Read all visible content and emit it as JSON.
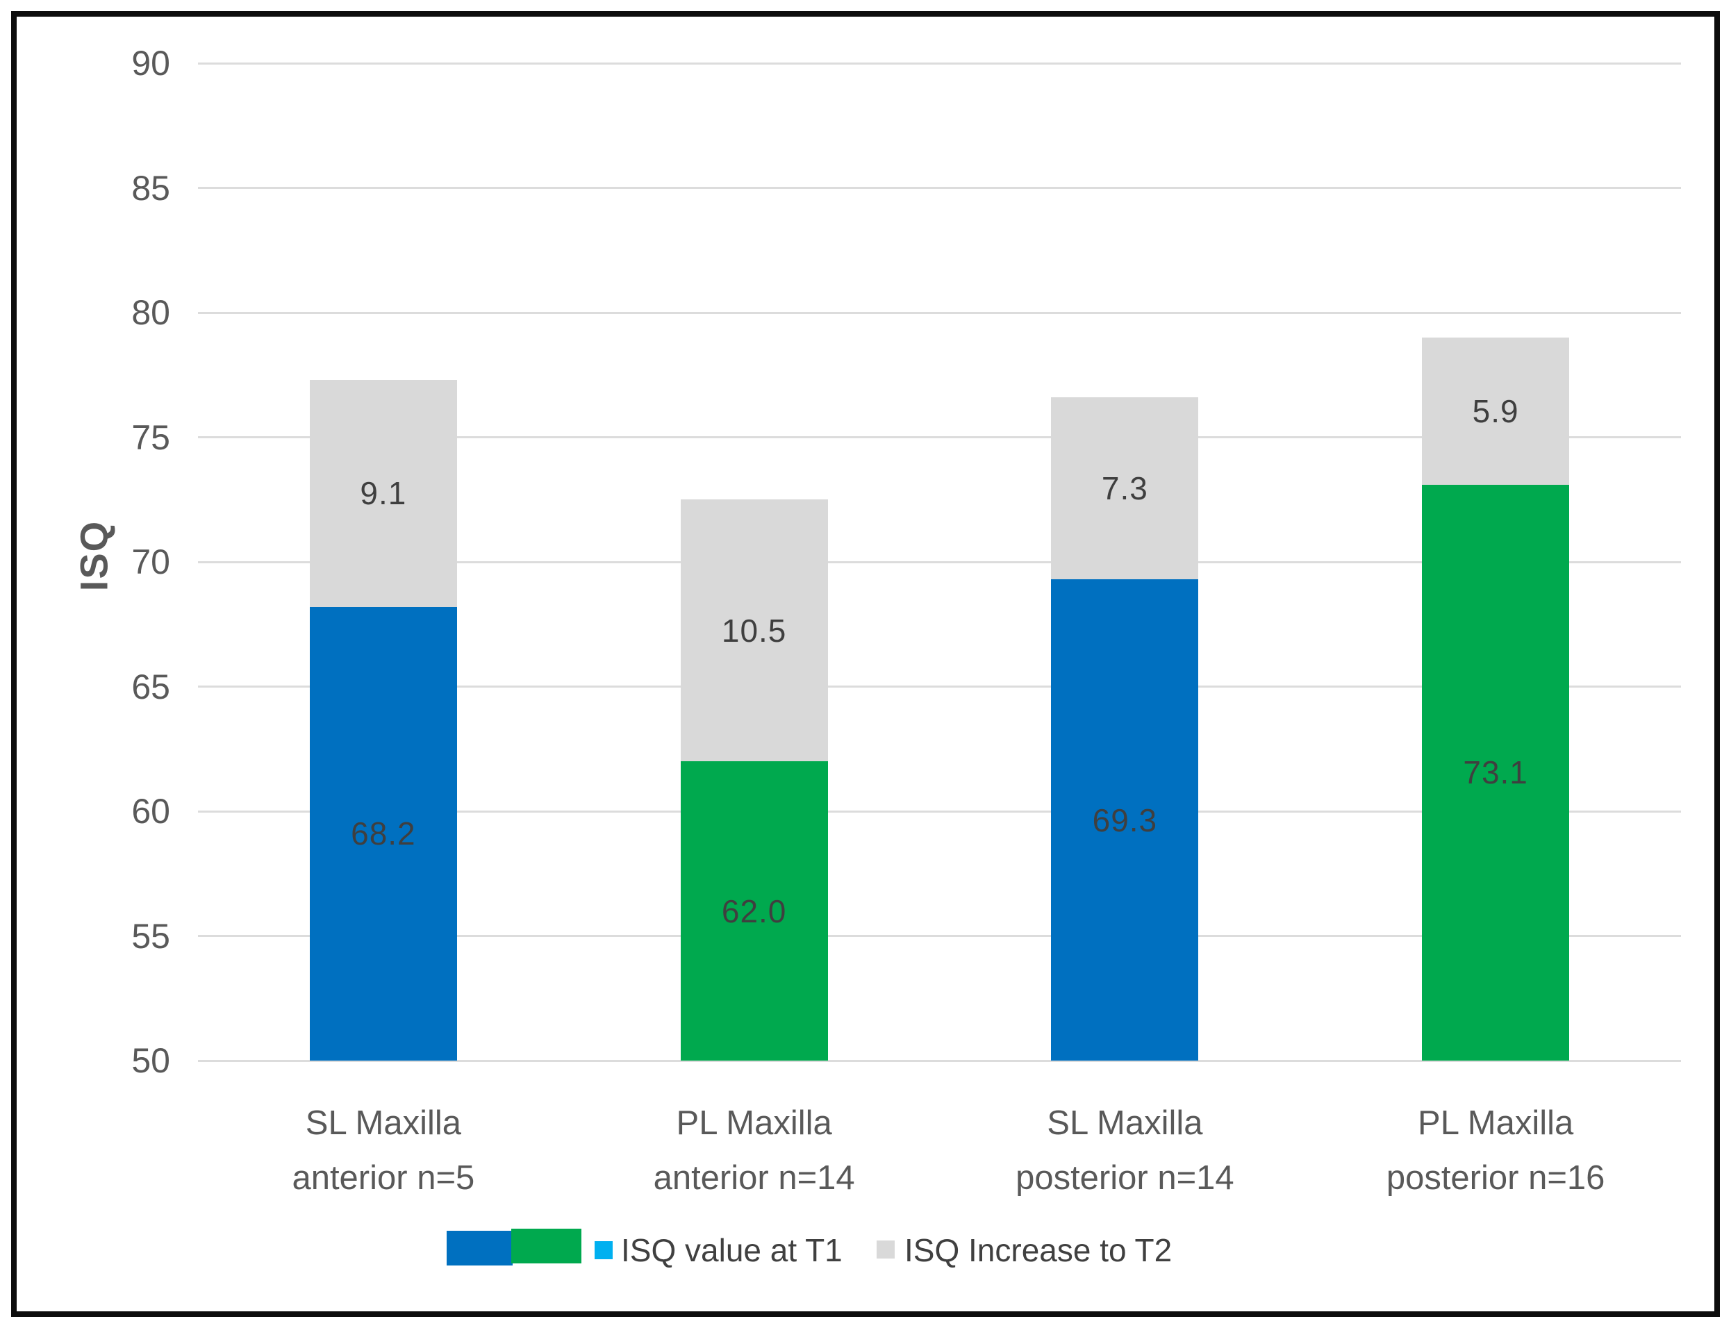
{
  "chart_data": {
    "type": "bar",
    "stacked": true,
    "ylabel": "ISQ",
    "ylim": [
      50,
      90
    ],
    "ytick_step": 5,
    "yticks": [
      90,
      85,
      80,
      75,
      70,
      65,
      60,
      55,
      50
    ],
    "grid": true,
    "legend_position": "bottom",
    "categories": [
      "SL Maxilla\nanterior n=5",
      "PL Maxilla\nanterior n=14",
      "SL Maxilla\nposterior n=14",
      "PL Maxilla\nposterior n=16"
    ],
    "series": [
      {
        "name": "ISQ value at T1",
        "values": [
          68.2,
          62.0,
          69.3,
          73.1
        ],
        "labels": [
          "68.2",
          "62.0",
          "69.3",
          "73.1"
        ],
        "bar_colors": [
          "#0070C0",
          "#00A94E",
          "#0070C0",
          "#00A94E"
        ]
      },
      {
        "name": "ISQ Increase to T2",
        "values": [
          9.1,
          10.5,
          7.3,
          5.9
        ],
        "labels": [
          "9.1",
          "10.5",
          "7.3",
          "5.9"
        ],
        "bar_colors": [
          "#D9D9D9",
          "#D9D9D9",
          "#D9D9D9",
          "#D9D9D9"
        ]
      }
    ]
  },
  "legend": {
    "swatches": [
      "#0070C0",
      "#00A94E"
    ],
    "items": [
      {
        "label": "ISQ value at T1",
        "marker_color": "#00B0F0"
      },
      {
        "label": "ISQ Increase to T2",
        "marker_color": "#D9D9D9"
      }
    ]
  },
  "colors": {
    "bar_blue": "#0070C0",
    "bar_green": "#00A94E",
    "bar_gray": "#D9D9D9",
    "legend_marker_cyan": "#00B0F0",
    "gridline": "#DCDCDC",
    "axis_text": "#595959",
    "data_label_text": "#3F3F3F",
    "frame": "#0D0D0D"
  }
}
